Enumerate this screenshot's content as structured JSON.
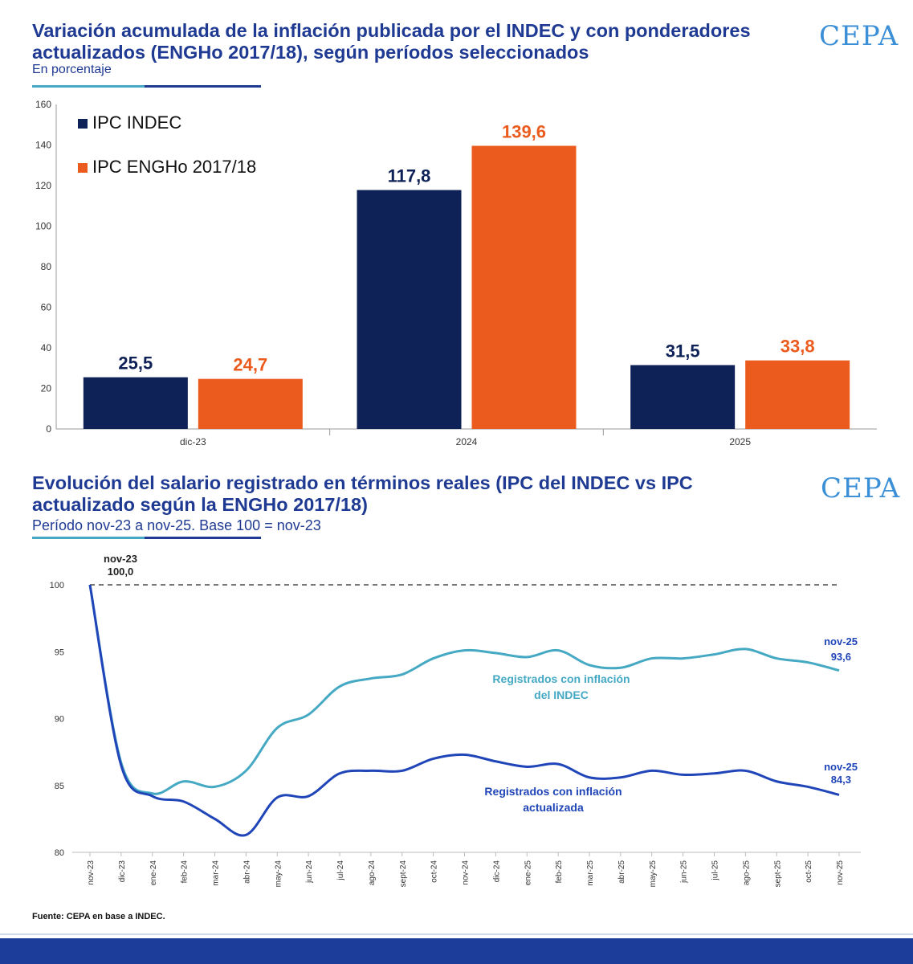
{
  "header": {
    "title": "Variación acumulada de la inflación publicada por el INDEC y con ponderadores actualizados (ENGHo 2017/18), según períodos seleccionados",
    "subtitle": "En porcentaje",
    "logo": "CEPA"
  },
  "section2": {
    "title": "Evolución del salario registrado en términos reales (IPC del INDEC vs IPC actualizado según la ENGHo 2017/18)",
    "subtitle": "Período nov-23 a nov-25. Base 100 = nov-23",
    "logo": "CEPA"
  },
  "source": "Fuente: CEPA en base a INDEC.",
  "colors": {
    "navy": "#0f2257",
    "orange": "#eb5b1e",
    "teal": "#45a9c4",
    "blue": "#1f45b8",
    "title": "#1f3a93"
  },
  "chart_data": [
    {
      "type": "bar",
      "categories": [
        "dic-23",
        "2024",
        "2025"
      ],
      "series": [
        {
          "name": "IPC INDEC",
          "values": [
            25.5,
            117.8,
            31.5
          ],
          "labels": [
            "25,5",
            "117,8",
            "31,5"
          ]
        },
        {
          "name": "IPC ENGHo 2017/18",
          "values": [
            24.7,
            139.6,
            33.8
          ],
          "labels": [
            "24,7",
            "139,6",
            "33,8"
          ]
        }
      ],
      "ylim": [
        0,
        160
      ],
      "yticks": [
        0,
        20,
        40,
        60,
        80,
        100,
        120,
        140,
        160
      ],
      "legend_position": "top-left"
    },
    {
      "type": "line",
      "x": [
        "nov-23",
        "dic-23",
        "ene-24",
        "feb-24",
        "mar-24",
        "abr-24",
        "may-24",
        "jun-24",
        "jul-24",
        "ago-24",
        "sept-24",
        "oct-24",
        "nov-24",
        "dic-24",
        "ene-25",
        "feb-25",
        "mar-25",
        "abr-25",
        "may-25",
        "jun-25",
        "jul-25",
        "ago-25",
        "sept-25",
        "oct-25",
        "nov-25"
      ],
      "series": [
        {
          "name": "Registrados con inflación del INDEC",
          "values": [
            100.0,
            86.7,
            84.4,
            85.3,
            84.9,
            86.1,
            89.3,
            90.3,
            92.4,
            93.0,
            93.3,
            94.5,
            95.1,
            94.9,
            94.6,
            95.1,
            94.0,
            93.8,
            94.5,
            94.5,
            94.8,
            95.2,
            94.5,
            94.2,
            93.6
          ]
        },
        {
          "name": "Registrados con inflación actualizada",
          "values": [
            100.0,
            86.5,
            84.2,
            83.8,
            82.5,
            81.3,
            84.1,
            84.2,
            85.9,
            86.1,
            86.1,
            87.0,
            87.3,
            86.8,
            86.4,
            86.6,
            85.6,
            85.6,
            86.1,
            85.8,
            85.9,
            86.1,
            85.3,
            84.9,
            84.3
          ]
        }
      ],
      "series_labels": [
        "Registrados con inflación",
        "del INDEC",
        "Registrados con inflación",
        "actualizada"
      ],
      "annotations": {
        "start": {
          "x": "nov-23",
          "value_label": "100,0"
        },
        "end_indec": {
          "x": "nov-25",
          "value_label": "93,6"
        },
        "end_actualizada": {
          "x": "nov-25",
          "value_label": "84,3"
        }
      },
      "reference_line": 100,
      "ylim": [
        80,
        100
      ],
      "yticks": [
        80,
        85,
        90,
        95,
        100
      ]
    }
  ]
}
